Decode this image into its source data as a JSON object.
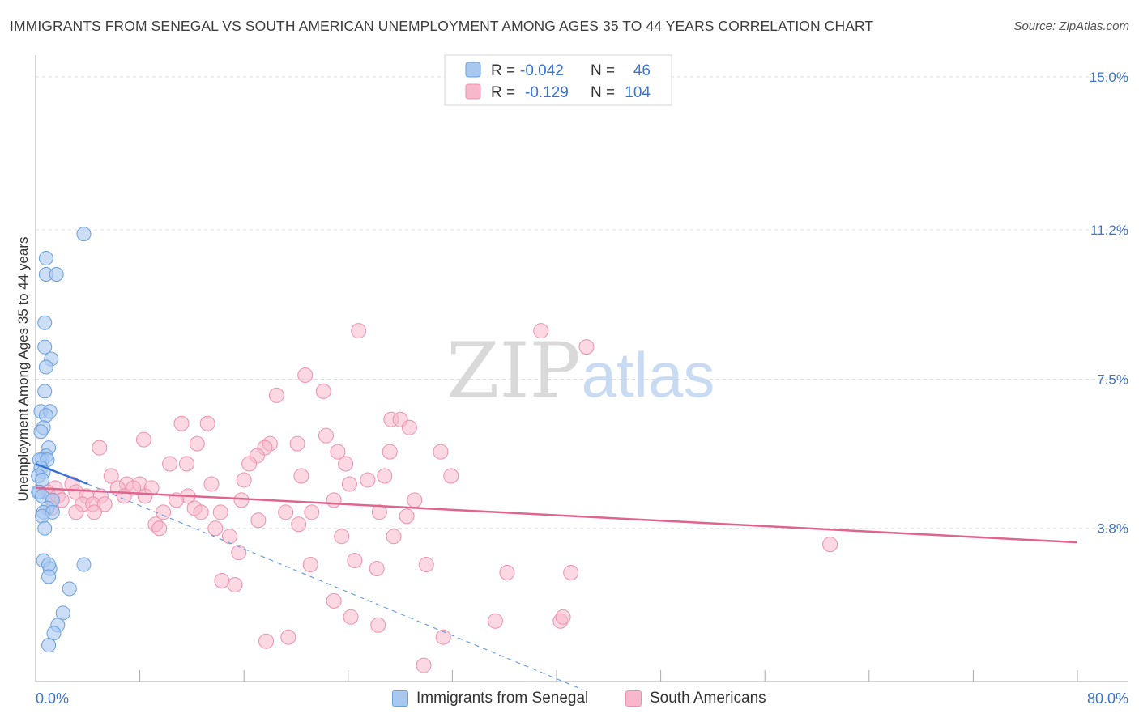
{
  "title": "IMMIGRANTS FROM SENEGAL VS SOUTH AMERICAN UNEMPLOYMENT AMONG AGES 35 TO 44 YEARS CORRELATION CHART",
  "source": "Source: ZipAtlas.com",
  "watermark": {
    "zip": "ZIP",
    "atlas": "atlas"
  },
  "colors": {
    "blue_fill": "#a8c8f0",
    "blue_stroke": "#6a9fdc",
    "blue_line": "#3a74d0",
    "pink_fill": "#f7b8cb",
    "pink_stroke": "#ee8fae",
    "pink_line": "#e0648e",
    "value_text": "#3a74d0",
    "grid": "#dddddd"
  },
  "stats_legend": [
    {
      "r_label": "R = ",
      "r_value": "-0.042",
      "n_label": "N = ",
      "n_value": "46"
    },
    {
      "r_label": "R = ",
      "r_value": "-0.129",
      "n_label": "N = ",
      "n_value": "104"
    }
  ],
  "chart_data": {
    "type": "scatter",
    "title": "IMMIGRANTS FROM SENEGAL VS SOUTH AMERICAN UNEMPLOYMENT AMONG AGES 35 TO 44 YEARS CORRELATION CHART",
    "xlabel": "",
    "ylabel": "Unemployment Among Ages 35 to 44 years",
    "xlim": [
      0,
      80
    ],
    "ylim": [
      0,
      15.5
    ],
    "x_tick_labels": [
      "0.0%",
      "80.0%"
    ],
    "y_ticks": [
      3.8,
      7.5,
      11.2,
      15.0
    ],
    "y_tick_labels": [
      "3.8%",
      "7.5%",
      "11.2%",
      "15.0%"
    ],
    "grid": true,
    "legend_position": "top-center",
    "series": [
      {
        "name": "Immigrants from Senegal",
        "trend_solid": {
          "x": [
            0,
            4
          ],
          "y": [
            5.4,
            4.9
          ]
        },
        "trend_dashed": {
          "x": [
            4,
            42
          ],
          "y": [
            4.9,
            -0.2
          ]
        },
        "points": [
          {
            "x": 3.7,
            "y": 11.1
          },
          {
            "x": 0.8,
            "y": 10.5
          },
          {
            "x": 0.8,
            "y": 10.1
          },
          {
            "x": 1.6,
            "y": 10.1
          },
          {
            "x": 0.7,
            "y": 8.9
          },
          {
            "x": 0.7,
            "y": 8.3
          },
          {
            "x": 1.2,
            "y": 8.0
          },
          {
            "x": 0.8,
            "y": 7.8
          },
          {
            "x": 0.7,
            "y": 7.2
          },
          {
            "x": 0.4,
            "y": 6.7
          },
          {
            "x": 1.1,
            "y": 6.7
          },
          {
            "x": 0.8,
            "y": 6.6
          },
          {
            "x": 0.6,
            "y": 6.3
          },
          {
            "x": 0.4,
            "y": 6.2
          },
          {
            "x": 1.0,
            "y": 5.8
          },
          {
            "x": 0.8,
            "y": 5.6
          },
          {
            "x": 0.5,
            "y": 5.5
          },
          {
            "x": 0.3,
            "y": 5.5
          },
          {
            "x": 0.9,
            "y": 5.5
          },
          {
            "x": 0.4,
            "y": 5.3
          },
          {
            "x": 0.6,
            "y": 5.2
          },
          {
            "x": 0.2,
            "y": 5.1
          },
          {
            "x": 0.5,
            "y": 5.0
          },
          {
            "x": 0.3,
            "y": 4.7
          },
          {
            "x": 0.2,
            "y": 4.7
          },
          {
            "x": 0.5,
            "y": 4.6
          },
          {
            "x": 1.3,
            "y": 4.5
          },
          {
            "x": 0.9,
            "y": 4.3
          },
          {
            "x": 0.6,
            "y": 4.2
          },
          {
            "x": 1.3,
            "y": 4.2
          },
          {
            "x": 0.5,
            "y": 4.1
          },
          {
            "x": 0.7,
            "y": 3.8
          },
          {
            "x": 0.6,
            "y": 3.0
          },
          {
            "x": 1.1,
            "y": 2.8
          },
          {
            "x": 1.0,
            "y": 2.9
          },
          {
            "x": 3.7,
            "y": 2.9
          },
          {
            "x": 1.0,
            "y": 2.6
          },
          {
            "x": 2.6,
            "y": 2.3
          },
          {
            "x": 2.1,
            "y": 1.7
          },
          {
            "x": 1.7,
            "y": 1.4
          },
          {
            "x": 1.4,
            "y": 1.2
          },
          {
            "x": 1.0,
            "y": 0.9
          }
        ]
      },
      {
        "name": "South Americans",
        "trend_solid": {
          "x": [
            0,
            80
          ],
          "y": [
            4.8,
            3.45
          ]
        },
        "points": [
          {
            "x": 24.8,
            "y": 8.7
          },
          {
            "x": 38.8,
            "y": 8.7
          },
          {
            "x": 42.3,
            "y": 8.3
          },
          {
            "x": 20.7,
            "y": 7.6
          },
          {
            "x": 22.1,
            "y": 7.2
          },
          {
            "x": 18.5,
            "y": 7.1
          },
          {
            "x": 27.3,
            "y": 6.5
          },
          {
            "x": 28.0,
            "y": 6.5
          },
          {
            "x": 11.2,
            "y": 6.4
          },
          {
            "x": 13.2,
            "y": 6.4
          },
          {
            "x": 28.7,
            "y": 6.3
          },
          {
            "x": 22.3,
            "y": 6.1
          },
          {
            "x": 8.3,
            "y": 6.0
          },
          {
            "x": 12.4,
            "y": 5.9
          },
          {
            "x": 18.0,
            "y": 5.9
          },
          {
            "x": 20.1,
            "y": 5.9
          },
          {
            "x": 17.6,
            "y": 5.8
          },
          {
            "x": 4.9,
            "y": 5.8
          },
          {
            "x": 23.2,
            "y": 5.7
          },
          {
            "x": 27.2,
            "y": 5.7
          },
          {
            "x": 31.1,
            "y": 5.7
          },
          {
            "x": 17.0,
            "y": 5.6
          },
          {
            "x": 10.3,
            "y": 5.4
          },
          {
            "x": 16.4,
            "y": 5.4
          },
          {
            "x": 11.6,
            "y": 5.4
          },
          {
            "x": 23.8,
            "y": 5.4
          },
          {
            "x": 5.8,
            "y": 5.1
          },
          {
            "x": 20.4,
            "y": 5.1
          },
          {
            "x": 26.8,
            "y": 5.1
          },
          {
            "x": 31.9,
            "y": 5.1
          },
          {
            "x": 25.5,
            "y": 5.0
          },
          {
            "x": 16.0,
            "y": 5.0
          },
          {
            "x": 24.1,
            "y": 4.9
          },
          {
            "x": 13.5,
            "y": 4.9
          },
          {
            "x": 8.0,
            "y": 4.9
          },
          {
            "x": 7.0,
            "y": 4.9
          },
          {
            "x": 2.8,
            "y": 4.9
          },
          {
            "x": 6.3,
            "y": 4.8
          },
          {
            "x": 7.5,
            "y": 4.8
          },
          {
            "x": 8.9,
            "y": 4.8
          },
          {
            "x": 1.5,
            "y": 4.8
          },
          {
            "x": 3.1,
            "y": 4.7
          },
          {
            "x": 0.9,
            "y": 4.7
          },
          {
            "x": 1.7,
            "y": 4.6
          },
          {
            "x": 3.9,
            "y": 4.6
          },
          {
            "x": 5.0,
            "y": 4.6
          },
          {
            "x": 6.8,
            "y": 4.6
          },
          {
            "x": 8.4,
            "y": 4.6
          },
          {
            "x": 11.7,
            "y": 4.6
          },
          {
            "x": 10.8,
            "y": 4.5
          },
          {
            "x": 15.8,
            "y": 4.5
          },
          {
            "x": 22.9,
            "y": 4.5
          },
          {
            "x": 29.1,
            "y": 4.5
          },
          {
            "x": 2.0,
            "y": 4.5
          },
          {
            "x": 3.6,
            "y": 4.4
          },
          {
            "x": 4.4,
            "y": 4.4
          },
          {
            "x": 5.3,
            "y": 4.4
          },
          {
            "x": 1.2,
            "y": 4.3
          },
          {
            "x": 12.2,
            "y": 4.3
          },
          {
            "x": 19.2,
            "y": 4.2
          },
          {
            "x": 21.2,
            "y": 4.2
          },
          {
            "x": 26.4,
            "y": 4.2
          },
          {
            "x": 3.1,
            "y": 4.2
          },
          {
            "x": 4.5,
            "y": 4.2
          },
          {
            "x": 9.8,
            "y": 4.2
          },
          {
            "x": 12.7,
            "y": 4.2
          },
          {
            "x": 14.2,
            "y": 4.2
          },
          {
            "x": 28.5,
            "y": 4.1
          },
          {
            "x": 17.1,
            "y": 4.0
          },
          {
            "x": 9.2,
            "y": 3.9
          },
          {
            "x": 20.2,
            "y": 3.9
          },
          {
            "x": 9.5,
            "y": 3.8
          },
          {
            "x": 13.8,
            "y": 3.8
          },
          {
            "x": 14.9,
            "y": 3.6
          },
          {
            "x": 27.5,
            "y": 3.6
          },
          {
            "x": 23.5,
            "y": 3.6
          },
          {
            "x": 15.6,
            "y": 3.2
          },
          {
            "x": 24.5,
            "y": 3.0
          },
          {
            "x": 21.1,
            "y": 2.9
          },
          {
            "x": 26.2,
            "y": 2.8
          },
          {
            "x": 30.0,
            "y": 2.9
          },
          {
            "x": 36.2,
            "y": 2.7
          },
          {
            "x": 41.1,
            "y": 2.7
          },
          {
            "x": 14.3,
            "y": 2.5
          },
          {
            "x": 15.3,
            "y": 2.4
          },
          {
            "x": 22.9,
            "y": 2.0
          },
          {
            "x": 24.2,
            "y": 1.6
          },
          {
            "x": 26.3,
            "y": 1.4
          },
          {
            "x": 35.3,
            "y": 1.5
          },
          {
            "x": 40.3,
            "y": 1.5
          },
          {
            "x": 40.5,
            "y": 1.6
          },
          {
            "x": 19.4,
            "y": 1.1
          },
          {
            "x": 17.7,
            "y": 1.0
          },
          {
            "x": 31.3,
            "y": 1.1
          },
          {
            "x": 29.8,
            "y": 0.4
          },
          {
            "x": 61.0,
            "y": 3.4
          }
        ]
      }
    ]
  }
}
